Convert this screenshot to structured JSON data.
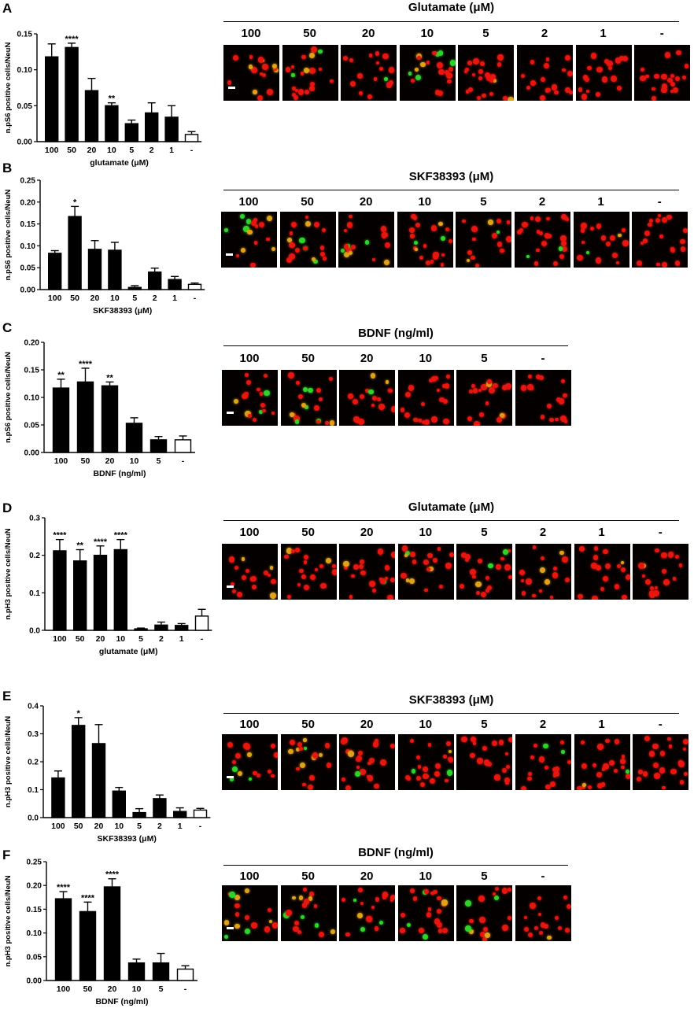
{
  "panels": [
    {
      "label": "A",
      "chart_data": {
        "type": "bar",
        "categories": [
          "100",
          "50",
          "20",
          "10",
          "5",
          "2",
          "1",
          "-"
        ],
        "values": [
          0.118,
          0.131,
          0.071,
          0.05,
          0.025,
          0.04,
          0.034,
          0.01
        ],
        "errors": [
          0.018,
          0.006,
          0.017,
          0.004,
          0.005,
          0.014,
          0.016,
          0.004
        ],
        "significance": [
          "",
          "****",
          "",
          "**",
          "",
          "",
          "",
          ""
        ],
        "ylabel": "n.pS6 positive cells/NeuN",
        "xlabel": "glutamate (μM)",
        "ylim": [
          0,
          0.15
        ],
        "yticks": [
          "0.00",
          "0.05",
          "0.10",
          "0.15"
        ],
        "control_index": 7,
        "grid": false
      },
      "micrographs": {
        "title": "Glutamate (μM)",
        "labels": [
          "100",
          "50",
          "20",
          "10",
          "5",
          "2",
          "1",
          "-"
        ]
      }
    },
    {
      "label": "B",
      "chart_data": {
        "type": "bar",
        "categories": [
          "100",
          "50",
          "20",
          "10",
          "5",
          "2",
          "1",
          "-"
        ],
        "values": [
          0.083,
          0.167,
          0.092,
          0.09,
          0.005,
          0.04,
          0.023,
          0.012
        ],
        "errors": [
          0.006,
          0.023,
          0.02,
          0.018,
          0.004,
          0.009,
          0.007,
          0.003
        ],
        "significance": [
          "",
          "*",
          "",
          "",
          "",
          "",
          "",
          ""
        ],
        "ylabel": "n.pS6 positive cells/NeuN",
        "xlabel": "SKF38393 (μM)",
        "ylim": [
          0,
          0.25
        ],
        "yticks": [
          "0.00",
          "0.05",
          "0.10",
          "0.15",
          "0.20",
          "0.25"
        ],
        "control_index": 7,
        "grid": false
      },
      "micrographs": {
        "title": "SKF38393 (μM)",
        "labels": [
          "100",
          "50",
          "20",
          "10",
          "5",
          "2",
          "1",
          "-"
        ]
      }
    },
    {
      "label": "C",
      "chart_data": {
        "type": "bar",
        "categories": [
          "100",
          "50",
          "20",
          "10",
          "5",
          "-"
        ],
        "values": [
          0.117,
          0.128,
          0.121,
          0.053,
          0.023,
          0.023
        ],
        "errors": [
          0.016,
          0.025,
          0.007,
          0.01,
          0.006,
          0.007
        ],
        "significance": [
          "**",
          "****",
          "**",
          "",
          "",
          ""
        ],
        "ylabel": "n.pS6 positive cells/NeuN",
        "xlabel": "BDNF (ng/ml)",
        "ylim": [
          0,
          0.2
        ],
        "yticks": [
          "0.00",
          "0.05",
          "0.10",
          "0.15",
          "0.20"
        ],
        "control_index": 5,
        "grid": false
      },
      "micrographs": {
        "title": "BDNF (ng/ml)",
        "labels": [
          "100",
          "50",
          "20",
          "10",
          "5",
          "-"
        ]
      }
    },
    {
      "label": "D",
      "chart_data": {
        "type": "bar",
        "categories": [
          "100",
          "50",
          "20",
          "10",
          "5",
          "2",
          "1",
          "-"
        ],
        "values": [
          0.212,
          0.185,
          0.2,
          0.215,
          0.004,
          0.014,
          0.013,
          0.038
        ],
        "errors": [
          0.03,
          0.03,
          0.025,
          0.027,
          0.002,
          0.008,
          0.005,
          0.018
        ],
        "significance": [
          "****",
          "**",
          "****",
          "****",
          "",
          "",
          "",
          ""
        ],
        "ylabel": "n.pH3 positive cells/NeuN",
        "xlabel": "glutamate (μM)",
        "ylim": [
          0,
          0.3
        ],
        "yticks": [
          "0.0",
          "0.1",
          "0.2",
          "0.3"
        ],
        "control_index": 7,
        "grid": false
      },
      "micrographs": {
        "title": "Glutamate (μM)",
        "labels": [
          "100",
          "50",
          "20",
          "10",
          "5",
          "2",
          "1",
          "-"
        ]
      }
    },
    {
      "label": "E",
      "chart_data": {
        "type": "bar",
        "categories": [
          "100",
          "50",
          "20",
          "10",
          "5",
          "2",
          "1",
          "-"
        ],
        "values": [
          0.142,
          0.33,
          0.265,
          0.095,
          0.018,
          0.068,
          0.022,
          0.027
        ],
        "errors": [
          0.025,
          0.028,
          0.068,
          0.013,
          0.014,
          0.013,
          0.013,
          0.006
        ],
        "significance": [
          "",
          "*",
          "",
          "",
          "",
          "",
          "",
          ""
        ],
        "ylabel": "n.pH3 positive cells/NeuN",
        "xlabel": "SKF38393 (μM)",
        "ylim": [
          0,
          0.4
        ],
        "yticks": [
          "0.0",
          "0.1",
          "0.2",
          "0.3",
          "0.4"
        ],
        "control_index": 7,
        "grid": false
      },
      "micrographs": {
        "title": "SKF38393 (μM)",
        "labels": [
          "100",
          "50",
          "20",
          "10",
          "5",
          "2",
          "1",
          "-"
        ]
      }
    },
    {
      "label": "F",
      "chart_data": {
        "type": "bar",
        "categories": [
          "100",
          "50",
          "20",
          "10",
          "5",
          "-"
        ],
        "values": [
          0.172,
          0.145,
          0.197,
          0.037,
          0.037,
          0.024
        ],
        "errors": [
          0.015,
          0.02,
          0.017,
          0.008,
          0.02,
          0.007
        ],
        "significance": [
          "****",
          "****",
          "****",
          "",
          "",
          ""
        ],
        "ylabel": "n.pH3 positive cells/NeuN",
        "xlabel": "BDNF (ng/ml)",
        "ylim": [
          0,
          0.25
        ],
        "yticks": [
          "0.00",
          "0.05",
          "0.10",
          "0.15",
          "0.20",
          "0.25"
        ],
        "control_index": 5,
        "grid": false
      },
      "micrographs": {
        "title": "BDNF (ng/ml)",
        "labels": [
          "100",
          "50",
          "20",
          "10",
          "5",
          "-"
        ]
      }
    }
  ],
  "colors": {
    "treated_bar": "#000000",
    "control_bar": "#ffffff",
    "micrograph_background": "#050000",
    "neun_stain": "#e8160f",
    "marker_stain": "#2fd42a",
    "colocalized": "#e0a317"
  }
}
